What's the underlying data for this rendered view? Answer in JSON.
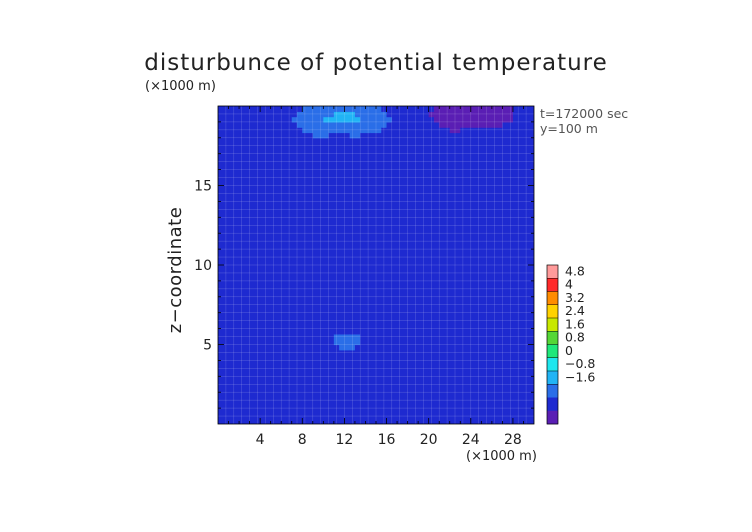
{
  "chart_data": {
    "type": "heatmap",
    "title": "disturbunce of potential temperature",
    "xlabel": "",
    "ylabel": "z−coordinate",
    "x_unit_label": "(×1000 m)",
    "y_unit_label": "(×1000 m)",
    "info_lines": [
      "t=172000 sec",
      "y=100 m"
    ],
    "x_range": [
      0,
      30
    ],
    "y_range": [
      0,
      20
    ],
    "x_ticks": [
      4,
      8,
      12,
      16,
      20,
      24,
      28
    ],
    "y_ticks": [
      5,
      10,
      15
    ],
    "grid": true,
    "colorbar": {
      "labels": [
        "4.8",
        "4",
        "3.2",
        "2.4",
        "1.6",
        "0.8",
        "0",
        "−0.8",
        "−1.6"
      ],
      "levels": [
        4.8,
        4.0,
        3.2,
        2.4,
        1.6,
        0.8,
        0.0,
        -0.8,
        -1.6
      ],
      "colors": [
        "#ff9a9a",
        "#ff2a2a",
        "#ff8c00",
        "#ffd200",
        "#c8e800",
        "#55d636",
        "#1fe87a",
        "#1ee6ee",
        "#21b4f5",
        "#2a6ee8",
        "#1e2ad0",
        "#5a1eb4"
      ]
    },
    "value_range": [
      -1.6,
      1.6
    ]
  }
}
